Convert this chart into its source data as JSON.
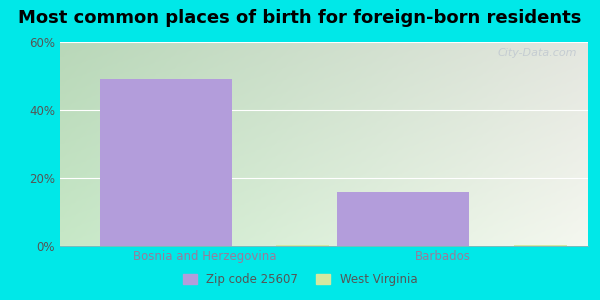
{
  "title": "Most common places of birth for foreign-born residents",
  "categories": [
    "Bosnia and Herzegovina",
    "Barbados"
  ],
  "zip_values": [
    49,
    16
  ],
  "wv_values": [
    0.3,
    0.3
  ],
  "zip_color": "#b39ddb",
  "wv_color": "#d4e8a0",
  "ylim": [
    0,
    60
  ],
  "yticks": [
    0,
    20,
    40,
    60
  ],
  "ytick_labels": [
    "0%",
    "20%",
    "40%",
    "60%"
  ],
  "background_outer": "#00e8e8",
  "background_grad_left": "#c8e6c9",
  "background_grad_right": "#f5f5f0",
  "legend_zip_label": "Zip code 25607",
  "legend_wv_label": "West Virginia",
  "title_fontsize": 13,
  "label_fontsize": 8.5,
  "tick_fontsize": 8.5,
  "watermark": "City-Data.com",
  "bar_width": 0.25,
  "x_positions": [
    0.25,
    0.75
  ],
  "n_categories": 2
}
